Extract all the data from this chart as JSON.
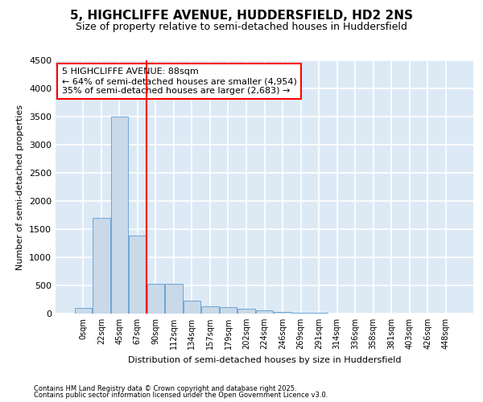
{
  "title_line1": "5, HIGHCLIFFE AVENUE, HUDDERSFIELD, HD2 2NS",
  "title_line2": "Size of property relative to semi-detached houses in Huddersfield",
  "xlabel": "Distribution of semi-detached houses by size in Huddersfield",
  "ylabel": "Number of semi-detached properties",
  "annotation_title": "5 HIGHCLIFFE AVENUE: 88sqm",
  "annotation_line2": "← 64% of semi-detached houses are smaller (4,954)",
  "annotation_line3": "35% of semi-detached houses are larger (2,683) →",
  "footer_line1": "Contains HM Land Registry data © Crown copyright and database right 2025.",
  "footer_line2": "Contains public sector information licensed under the Open Government Licence v3.0.",
  "bar_labels": [
    "0sqm",
    "22sqm",
    "45sqm",
    "67sqm",
    "90sqm",
    "112sqm",
    "134sqm",
    "157sqm",
    "179sqm",
    "202sqm",
    "224sqm",
    "246sqm",
    "269sqm",
    "291sqm",
    "314sqm",
    "336sqm",
    "358sqm",
    "381sqm",
    "403sqm",
    "426sqm",
    "448sqm"
  ],
  "bar_values": [
    100,
    1700,
    3500,
    1380,
    530,
    530,
    225,
    130,
    120,
    80,
    55,
    35,
    20,
    10,
    5,
    3,
    2,
    1,
    0,
    0,
    0
  ],
  "bar_color": "#c9d9e8",
  "bar_edge_color": "#5b9bd5",
  "vline_x": 3.5,
  "vline_color": "red",
  "ylim": [
    0,
    4500
  ],
  "yticks": [
    0,
    500,
    1000,
    1500,
    2000,
    2500,
    3000,
    3500,
    4000,
    4500
  ],
  "bg_color": "#ddeaf6",
  "grid_color": "white",
  "annotation_box_color": "white",
  "annotation_box_edge": "red",
  "title_fontsize": 11,
  "subtitle_fontsize": 9,
  "ylabel_fontsize": 8,
  "xlabel_fontsize": 8,
  "tick_fontsize": 7,
  "footer_fontsize": 6,
  "ann_fontsize": 8
}
